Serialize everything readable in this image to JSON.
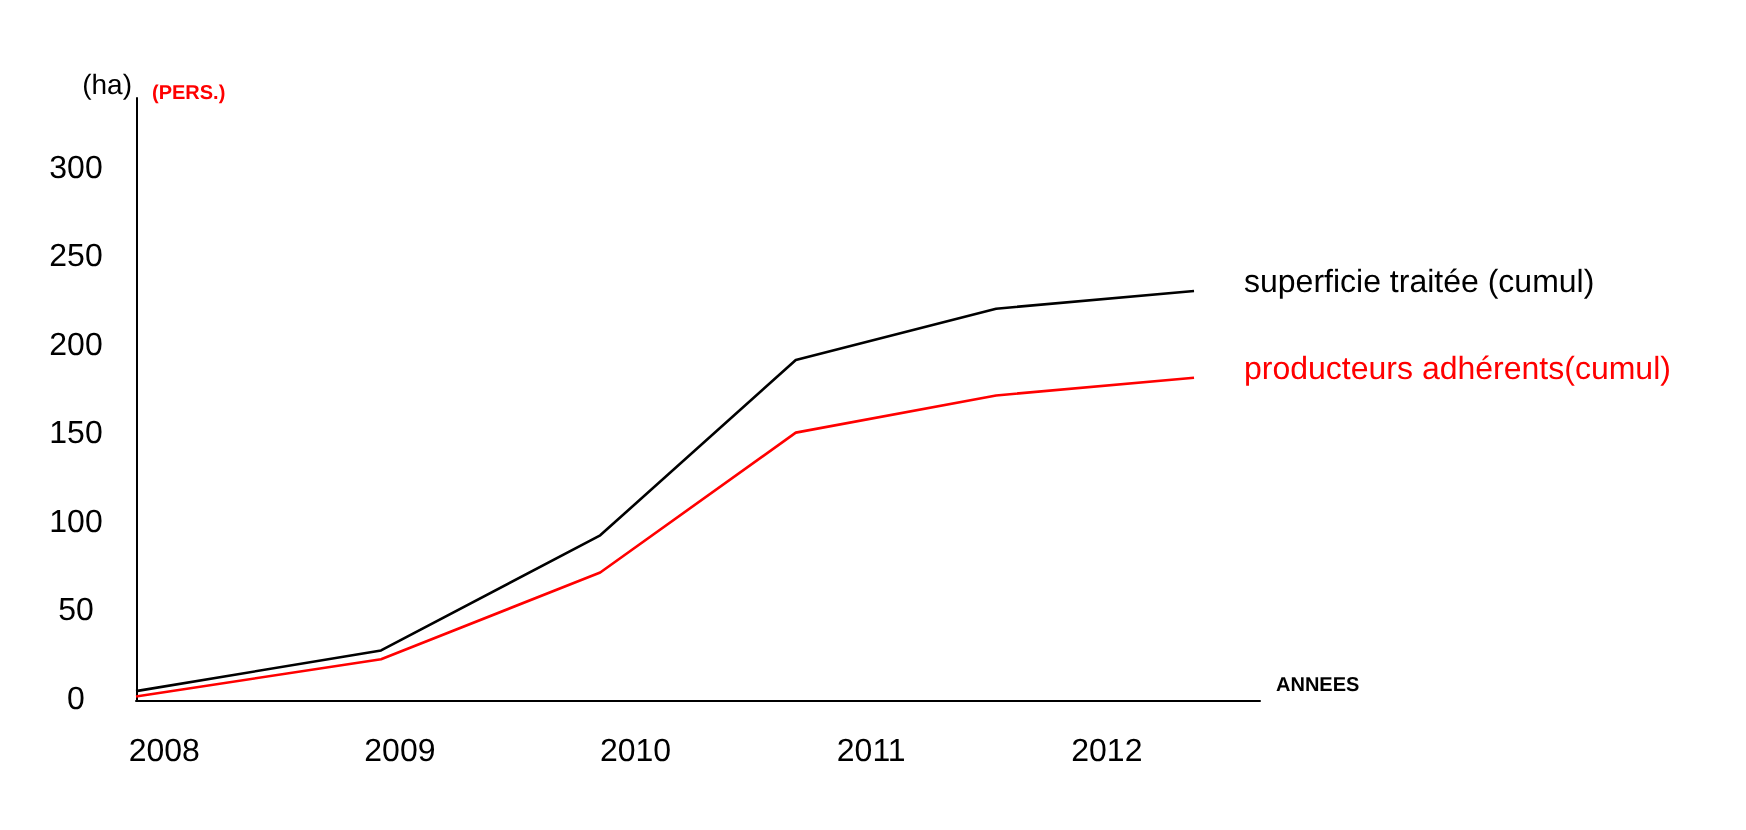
{
  "chart_data": {
    "type": "line",
    "ylabel": "(ha)",
    "xlabel": "ANNEES",
    "annotations": [
      "(PERS.)"
    ],
    "xlim": [
      2007.88,
      2012.65
    ],
    "xticks": [
      2008,
      2009,
      2010,
      2011,
      2012
    ],
    "ylim": [
      0,
      340
    ],
    "yticks": [
      0,
      50,
      100,
      150,
      200,
      250,
      300
    ],
    "x": [
      2007.88,
      2008.92,
      2009.85,
      2010.68,
      2011.53,
      2012.37
    ],
    "series": [
      {
        "name": "superficie traitée (cumul)",
        "color": "#000000",
        "values": [
          5,
          28,
          93,
          192,
          221,
          231
        ]
      },
      {
        "name": "producteurs adhérents(cumul)",
        "color": "#ff0000",
        "values": [
          2,
          23,
          72,
          151,
          172,
          182
        ]
      }
    ],
    "grid": false,
    "legend": false,
    "marker": "none",
    "line_style": "solid"
  }
}
